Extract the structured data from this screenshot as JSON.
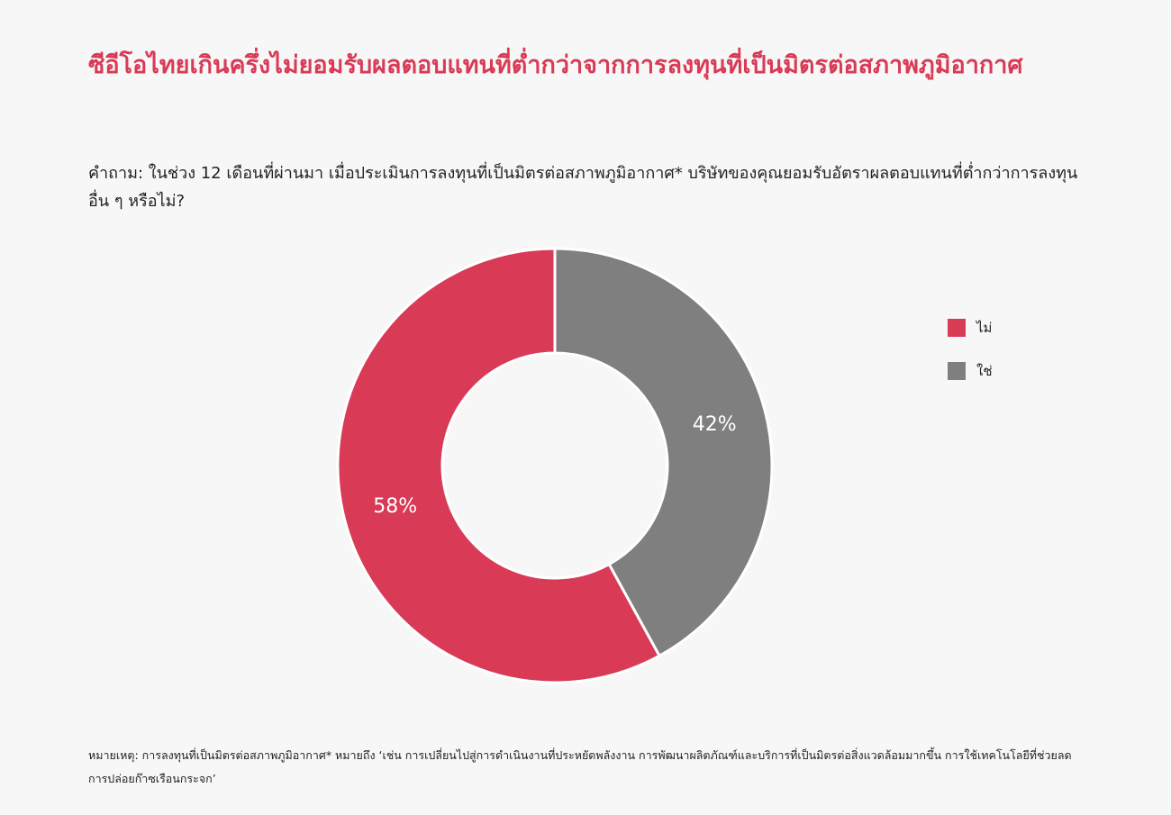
{
  "title": "ซีอีโอไทยเกินครึ่งไม่ยอมรับผลตอบแทนที่ต่ำกว่าจากการลงทุนที่เป็นมิตรต่อสภาพภูมิอากาศ",
  "question": "คำถาม: ในช่วง 12 เดือนที่ผ่านมา เมื่อประเมินการลงทุนที่เป็นมิตรต่อสภาพภูมิอากาศ* บริษัทของคุณยอมรับอัตราผลตอบแทนที่ต่ำกว่าการลงทุนอื่น ๆ หรือไม่?",
  "footnote": "หมายเหตุ: การลงทุนที่เป็นมิตรต่อสภาพภูมิอากาศ* หมายถึง ‘เช่น การเปลี่ยนไปสู่การดำเนินงานที่ประหยัดพลังงาน การพัฒนาผลิตภัณฑ์และบริการที่เป็นมิตรต่อสิ่งแวดล้อมมากขึ้น การใช้เทคโนโลยีที่ช่วยลดการปล่อยก๊าซเรือนกระจก’",
  "colors": {
    "title": "#d93a56",
    "no": "#d93a56",
    "yes": "#7f7f7f",
    "background": "#f7f7f7"
  },
  "chart_data": {
    "type": "pie",
    "variant": "donut",
    "categories": [
      "ไม่",
      "ใช่"
    ],
    "values": [
      58,
      42
    ],
    "labels": [
      "58%",
      "42%"
    ],
    "colors": [
      "#d93a56",
      "#7f7f7f"
    ],
    "legend_position": "right",
    "start": "top",
    "direction": "counterclockwise",
    "legend": [
      {
        "label": "ไม่",
        "color": "#d93a56"
      },
      {
        "label": "ใช่",
        "color": "#7f7f7f"
      }
    ]
  }
}
